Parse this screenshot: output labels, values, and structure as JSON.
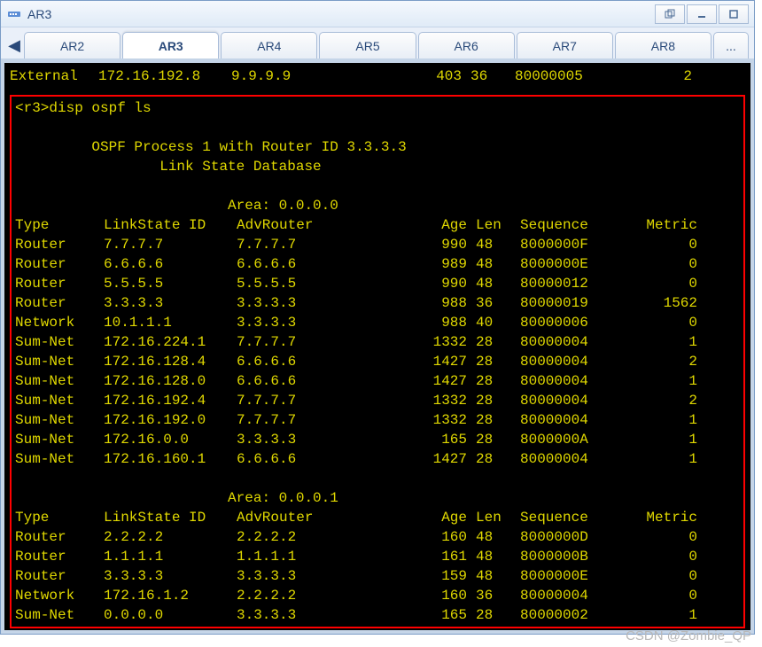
{
  "colors": {
    "terminal_fg": "#e0d800"
  },
  "window": {
    "title": "AR3"
  },
  "tabs": {
    "items": [
      "AR2",
      "AR3",
      "AR4",
      "AR5",
      "AR6",
      "AR7",
      "AR8"
    ],
    "more": "...",
    "active_index": 1
  },
  "top_entry": {
    "type": "External",
    "ls": "172.16.192.8",
    "adv": "9.9.9.9",
    "age": "403",
    "len": "36",
    "seq": "80000005",
    "metric": "2"
  },
  "cmd": {
    "prompt": "<r3>",
    "text": "disp ospf ls"
  },
  "ospf": {
    "process_line": "OSPF Process 1 with Router ID 3.3.3.3",
    "subtitle": "Link State Database"
  },
  "headers": {
    "type": "Type",
    "ls": "LinkState ID",
    "adv": "AdvRouter",
    "age": "Age",
    "len": "Len",
    "seq": "Sequence",
    "metric": "Metric"
  },
  "areas": [
    {
      "label": "Area: 0.0.0.0",
      "rows": [
        {
          "type": "Router",
          "ls": "7.7.7.7",
          "adv": "7.7.7.7",
          "age": "990",
          "len": "48",
          "seq": "8000000F",
          "metric": "0"
        },
        {
          "type": "Router",
          "ls": "6.6.6.6",
          "adv": "6.6.6.6",
          "age": "989",
          "len": "48",
          "seq": "8000000E",
          "metric": "0"
        },
        {
          "type": "Router",
          "ls": "5.5.5.5",
          "adv": "5.5.5.5",
          "age": "990",
          "len": "48",
          "seq": "80000012",
          "metric": "0"
        },
        {
          "type": "Router",
          "ls": "3.3.3.3",
          "adv": "3.3.3.3",
          "age": "988",
          "len": "36",
          "seq": "80000019",
          "metric": "1562"
        },
        {
          "type": "Network",
          "ls": "10.1.1.1",
          "adv": "3.3.3.3",
          "age": "988",
          "len": "40",
          "seq": "80000006",
          "metric": "0"
        },
        {
          "type": "Sum-Net",
          "ls": "172.16.224.1",
          "adv": "7.7.7.7",
          "age": "1332",
          "len": "28",
          "seq": "80000004",
          "metric": "1"
        },
        {
          "type": "Sum-Net",
          "ls": "172.16.128.4",
          "adv": "6.6.6.6",
          "age": "1427",
          "len": "28",
          "seq": "80000004",
          "metric": "2"
        },
        {
          "type": "Sum-Net",
          "ls": "172.16.128.0",
          "adv": "6.6.6.6",
          "age": "1427",
          "len": "28",
          "seq": "80000004",
          "metric": "1"
        },
        {
          "type": "Sum-Net",
          "ls": "172.16.192.4",
          "adv": "7.7.7.7",
          "age": "1332",
          "len": "28",
          "seq": "80000004",
          "metric": "2"
        },
        {
          "type": "Sum-Net",
          "ls": "172.16.192.0",
          "adv": "7.7.7.7",
          "age": "1332",
          "len": "28",
          "seq": "80000004",
          "metric": "1"
        },
        {
          "type": "Sum-Net",
          "ls": "172.16.0.0",
          "adv": "3.3.3.3",
          "age": "165",
          "len": "28",
          "seq": "8000000A",
          "metric": "1"
        },
        {
          "type": "Sum-Net",
          "ls": "172.16.160.1",
          "adv": "6.6.6.6",
          "age": "1427",
          "len": "28",
          "seq": "80000004",
          "metric": "1"
        }
      ]
    },
    {
      "label": "Area: 0.0.0.1",
      "rows": [
        {
          "type": "Router",
          "ls": "2.2.2.2",
          "adv": "2.2.2.2",
          "age": "160",
          "len": "48",
          "seq": "8000000D",
          "metric": "0"
        },
        {
          "type": "Router",
          "ls": "1.1.1.1",
          "adv": "1.1.1.1",
          "age": "161",
          "len": "48",
          "seq": "8000000B",
          "metric": "0"
        },
        {
          "type": "Router",
          "ls": "3.3.3.3",
          "adv": "3.3.3.3",
          "age": "159",
          "len": "48",
          "seq": "8000000E",
          "metric": "0"
        },
        {
          "type": "Network",
          "ls": "172.16.1.2",
          "adv": "2.2.2.2",
          "age": "160",
          "len": "36",
          "seq": "80000004",
          "metric": "0"
        },
        {
          "type": "Sum-Net",
          "ls": "0.0.0.0",
          "adv": "3.3.3.3",
          "age": "165",
          "len": "28",
          "seq": "80000002",
          "metric": "1"
        }
      ]
    }
  ],
  "watermark": "CSDN @Zombie_QP"
}
